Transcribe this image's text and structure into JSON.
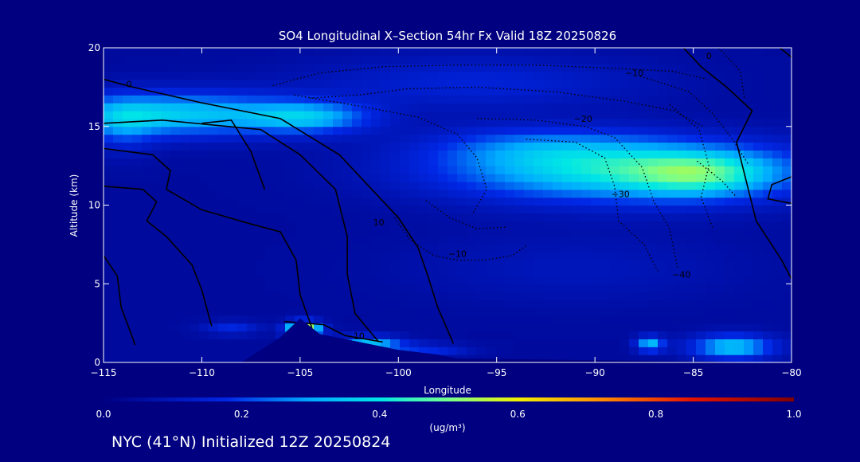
{
  "chart_data": {
    "type": "heatmap",
    "title": "SO4 Longitudinal X–Section 54hr  Fx Valid 18Z 20250826",
    "xlabel": "Longitude",
    "ylabel": "Altitude (km)",
    "xlim": [
      -115,
      -80
    ],
    "ylim": [
      0,
      20
    ],
    "x_ticks": [
      -115,
      -110,
      -105,
      -100,
      -95,
      -90,
      -85,
      -80
    ],
    "x_tick_labels": [
      "−115",
      "−110",
      "−105",
      "−100",
      "−95",
      "−90",
      "−85",
      "−80"
    ],
    "y_ticks": [
      0,
      5,
      10,
      15,
      20
    ],
    "y_tick_labels": [
      "0",
      "5",
      "10",
      "15",
      "20"
    ],
    "colorbar": {
      "label": "(ug/m³)",
      "range": [
        0.0,
        1.0
      ],
      "ticks": [
        0.0,
        0.2,
        0.4,
        0.6,
        0.8,
        1.0
      ],
      "tick_labels": [
        "0.0",
        "0.2",
        "0.4",
        "0.6",
        "0.8",
        "1.0"
      ]
    },
    "field": {
      "background": 0.05,
      "blobs": [
        {
          "lon": -88.5,
          "alt": 12.2,
          "slon": 6.5,
          "salt": 1.4,
          "v": 0.35
        },
        {
          "lon": -84.5,
          "alt": 12.0,
          "slon": 2.5,
          "salt": 1.0,
          "v": 0.18
        },
        {
          "lon": -93.0,
          "alt": 13.8,
          "slon": 4.0,
          "salt": 0.9,
          "v": 0.12
        },
        {
          "lon": -111.5,
          "alt": 15.8,
          "slon": 4.5,
          "salt": 1.0,
          "v": 0.3
        },
        {
          "lon": -104.5,
          "alt": 15.6,
          "slon": 2.2,
          "salt": 0.7,
          "v": 0.22
        },
        {
          "lon": -114.0,
          "alt": 15.0,
          "slon": 1.2,
          "salt": 1.2,
          "v": 0.1
        },
        {
          "lon": -96.0,
          "alt": 17.8,
          "slon": 6.0,
          "salt": 1.2,
          "v": 0.1
        },
        {
          "lon": -104.8,
          "alt": 2.1,
          "slon": 0.6,
          "salt": 0.35,
          "v": 0.58
        },
        {
          "lon": -101.5,
          "alt": 1.1,
          "slon": 1.2,
          "salt": 0.4,
          "v": 0.3
        },
        {
          "lon": -98.5,
          "alt": 0.8,
          "slon": 1.5,
          "salt": 0.3,
          "v": 0.12
        },
        {
          "lon": -87.2,
          "alt": 1.2,
          "slon": 0.5,
          "salt": 0.35,
          "v": 0.28
        },
        {
          "lon": -83.0,
          "alt": 1.0,
          "slon": 1.5,
          "salt": 0.55,
          "v": 0.3
        },
        {
          "lon": -108.5,
          "alt": 2.2,
          "slon": 1.0,
          "salt": 0.3,
          "v": 0.12
        },
        {
          "lon": -91.0,
          "alt": 6.0,
          "slon": 6.0,
          "salt": 1.6,
          "v": 0.05
        }
      ]
    },
    "terrain": [
      {
        "lon": -115,
        "alt": 0.0
      },
      {
        "lon": -108,
        "alt": 0.0
      },
      {
        "lon": -106,
        "alt": 1.6
      },
      {
        "lon": -105,
        "alt": 2.8
      },
      {
        "lon": -104,
        "alt": 1.8
      },
      {
        "lon": -102,
        "alt": 1.3
      },
      {
        "lon": -100,
        "alt": 0.8
      },
      {
        "lon": -98,
        "alt": 0.5
      },
      {
        "lon": -97,
        "alt": 0.25
      },
      {
        "lon": -80,
        "alt": 0.0
      }
    ],
    "contour_labels": [
      {
        "text": "0",
        "lon": -113.7,
        "alt": 17.5
      },
      {
        "text": "−10",
        "lon": -88.0,
        "alt": 18.2
      },
      {
        "text": "−20",
        "lon": -90.6,
        "alt": 15.3
      },
      {
        "text": "−30",
        "lon": -88.7,
        "alt": 10.5
      },
      {
        "text": "−40",
        "lon": -85.6,
        "alt": 5.4
      },
      {
        "text": "10",
        "lon": -101.0,
        "alt": 8.7
      },
      {
        "text": "−10",
        "lon": -97.0,
        "alt": 6.7
      },
      {
        "text": "0",
        "lon": -84.2,
        "alt": 19.3
      },
      {
        "text": "10",
        "lon": -102.0,
        "alt": 1.5
      }
    ]
  },
  "footer": {
    "caption": "NYC (41°N) Initialized 12Z 20250824"
  }
}
